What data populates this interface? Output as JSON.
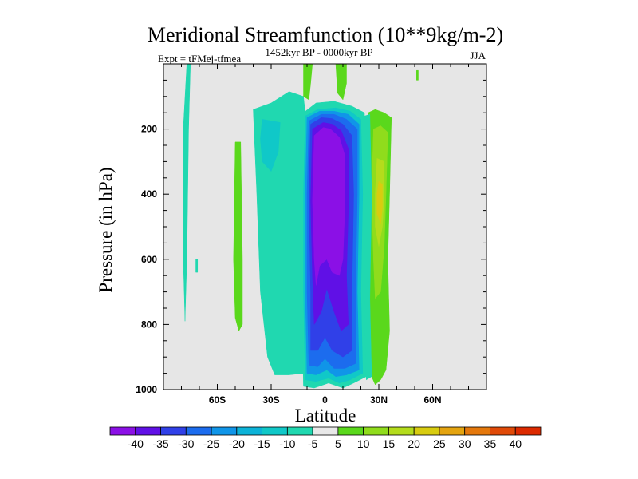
{
  "chart_data": {
    "type": "heatmap",
    "title": "Meridional Streamfunction (10**9kg/m-2)",
    "subtitle_left": "Expt = tFMej-tfmea",
    "subtitle_center": "1452kyr BP - 0000kyr BP",
    "subtitle_right": "JJA",
    "xlabel": "Latitude",
    "ylabel": "Pressure (in hPa)",
    "xlim": [
      -90,
      90
    ],
    "ylim": [
      0,
      1000
    ],
    "y_inverted": true,
    "x_ticks": [
      {
        "value": -60,
        "label": "60S"
      },
      {
        "value": -30,
        "label": "30S"
      },
      {
        "value": 0,
        "label": "0"
      },
      {
        "value": 30,
        "label": "30N"
      },
      {
        "value": 60,
        "label": "60N"
      }
    ],
    "y_ticks": [
      200,
      400,
      600,
      800,
      1000
    ],
    "missing_color": "#e6e6e6",
    "colorbar": {
      "levels": [
        "-40",
        "-35",
        "-30",
        "-25",
        "-20",
        "-15",
        "-10",
        "-5",
        "5",
        "10",
        "15",
        "20",
        "25",
        "30",
        "35",
        "40"
      ],
      "colors": [
        "#8b10e6",
        "#6010e6",
        "#3040e8",
        "#1c6cee",
        "#1095e8",
        "#0cb3d8",
        "#10c8c8",
        "#20d8b0",
        "#e8e8e8",
        "#5ad81c",
        "#90dc1c",
        "#b4dc1c",
        "#d8cc10",
        "#e4a410",
        "#e4780c",
        "#e04a08",
        "#dc2a00"
      ]
    },
    "regions": [
      {
        "name": "polar-south-strip",
        "value": -10,
        "color": "#20d8b0",
        "points": [
          [
            -77,
            0
          ],
          [
            -75,
            0
          ],
          [
            -76,
            200
          ],
          [
            -77,
            600
          ],
          [
            -78,
            790
          ],
          [
            -79,
            600
          ],
          [
            -79,
            200
          ]
        ]
      },
      {
        "name": "south-mid-positive",
        "value": 10,
        "color": "#5ad81c",
        "points": [
          [
            -50,
            240
          ],
          [
            -47,
            240
          ],
          [
            -46,
            600
          ],
          [
            -46,
            800
          ],
          [
            -48,
            820
          ],
          [
            -50,
            780
          ],
          [
            -51,
            600
          ]
        ]
      },
      {
        "name": "south-mid-negative",
        "value": -10,
        "color": "#20d8b0",
        "points": [
          [
            -40,
            140
          ],
          [
            -30,
            120
          ],
          [
            -20,
            85
          ],
          [
            -12,
            100
          ],
          [
            -10,
            200
          ],
          [
            -10,
            500
          ],
          [
            -12,
            950
          ],
          [
            -20,
            955
          ],
          [
            -28,
            955
          ],
          [
            -32,
            900
          ],
          [
            -36,
            700
          ],
          [
            -38,
            400
          ]
        ]
      },
      {
        "name": "south-mid-negative-core",
        "value": -15,
        "color": "#10c8c8",
        "points": [
          [
            -35,
            170
          ],
          [
            -25,
            180
          ],
          [
            -26,
            270
          ],
          [
            -30,
            330
          ],
          [
            -35,
            300
          ],
          [
            -36,
            230
          ]
        ]
      },
      {
        "name": "hadley-outer",
        "value": -10,
        "color": "#20d8b0",
        "points": [
          [
            -12,
            150
          ],
          [
            -5,
            120
          ],
          [
            5,
            115
          ],
          [
            15,
            130
          ],
          [
            22,
            150
          ],
          [
            23,
            400
          ],
          [
            22,
            700
          ],
          [
            23,
            960
          ],
          [
            16,
            980
          ],
          [
            10,
            995
          ],
          [
            2,
            980
          ],
          [
            -6,
            995
          ],
          [
            -12,
            990
          ],
          [
            -13,
            700
          ],
          [
            -13,
            400
          ]
        ]
      },
      {
        "name": "hadley-ring1",
        "value": -15,
        "color": "#10c8c8",
        "points": [
          [
            -11,
            160
          ],
          [
            -4,
            140
          ],
          [
            6,
            135
          ],
          [
            14,
            145
          ],
          [
            20,
            170
          ],
          [
            21,
            400
          ],
          [
            20,
            700
          ],
          [
            21,
            950
          ],
          [
            14,
            970
          ],
          [
            8,
            980
          ],
          [
            2,
            965
          ],
          [
            -5,
            975
          ],
          [
            -11,
            970
          ],
          [
            -12,
            700
          ],
          [
            -12,
            400
          ]
        ]
      },
      {
        "name": "hadley-ring2",
        "value": -20,
        "color": "#1095e8",
        "points": [
          [
            -10,
            165
          ],
          [
            -3,
            145
          ],
          [
            5,
            145
          ],
          [
            13,
            155
          ],
          [
            19,
            185
          ],
          [
            19,
            400
          ],
          [
            18,
            700
          ],
          [
            19,
            940
          ],
          [
            12,
            955
          ],
          [
            6,
            960
          ],
          [
            1,
            940
          ],
          [
            -5,
            955
          ],
          [
            -10,
            950
          ],
          [
            -11,
            700
          ],
          [
            -11,
            400
          ]
        ]
      },
      {
        "name": "hadley-ring3",
        "value": -25,
        "color": "#1c6cee",
        "points": [
          [
            -9,
            175
          ],
          [
            -2,
            155
          ],
          [
            5,
            155
          ],
          [
            12,
            170
          ],
          [
            18,
            200
          ],
          [
            18,
            400
          ],
          [
            17,
            700
          ],
          [
            17,
            920
          ],
          [
            11,
            935
          ],
          [
            5,
            935
          ],
          [
            0,
            905
          ],
          [
            -4,
            930
          ],
          [
            -9,
            925
          ],
          [
            -10,
            700
          ],
          [
            -10,
            400
          ]
        ]
      },
      {
        "name": "hadley-ring4",
        "value": -30,
        "color": "#3040e8",
        "points": [
          [
            -8,
            185
          ],
          [
            -2,
            165
          ],
          [
            4,
            168
          ],
          [
            10,
            185
          ],
          [
            15,
            220
          ],
          [
            16,
            400
          ],
          [
            15,
            700
          ],
          [
            15,
            880
          ],
          [
            10,
            900
          ],
          [
            4,
            880
          ],
          [
            0,
            840
          ],
          [
            -4,
            880
          ],
          [
            -8,
            880
          ],
          [
            -8,
            700
          ],
          [
            -9,
            400
          ]
        ]
      },
      {
        "name": "hadley-ring5",
        "value": -35,
        "color": "#6010e6",
        "points": [
          [
            -7,
            200
          ],
          [
            -1,
            180
          ],
          [
            4,
            185
          ],
          [
            9,
            205
          ],
          [
            13,
            260
          ],
          [
            13,
            450
          ],
          [
            12,
            650
          ],
          [
            13,
            800
          ],
          [
            9,
            820
          ],
          [
            5,
            760
          ],
          [
            1,
            690
          ],
          [
            -2,
            760
          ],
          [
            -6,
            800
          ],
          [
            -7,
            650
          ],
          [
            -8,
            420
          ]
        ]
      },
      {
        "name": "hadley-core",
        "value": -40,
        "color": "#8b10e6",
        "points": [
          [
            -6,
            220
          ],
          [
            -1,
            195
          ],
          [
            3,
            200
          ],
          [
            8,
            225
          ],
          [
            11,
            280
          ],
          [
            11,
            450
          ],
          [
            10,
            600
          ],
          [
            8,
            650
          ],
          [
            4,
            640
          ],
          [
            1,
            600
          ],
          [
            -3,
            620
          ],
          [
            -5,
            680
          ],
          [
            -6,
            600
          ],
          [
            -7,
            420
          ]
        ]
      },
      {
        "name": "north-hadley-positive",
        "value": 10,
        "color": "#5ad81c",
        "points": [
          [
            24,
            150
          ],
          [
            28,
            140
          ],
          [
            33,
            150
          ],
          [
            37,
            165
          ],
          [
            36,
            400
          ],
          [
            35,
            600
          ],
          [
            36,
            820
          ],
          [
            34,
            940
          ],
          [
            31,
            970
          ],
          [
            28,
            985
          ],
          [
            26,
            960
          ],
          [
            24,
            900
          ],
          [
            25,
            700
          ],
          [
            25,
            400
          ]
        ]
      },
      {
        "name": "north-hadley-positive-2",
        "value": 15,
        "color": "#90dc1c",
        "points": [
          [
            27,
            200
          ],
          [
            31,
            190
          ],
          [
            35,
            210
          ],
          [
            34,
            400
          ],
          [
            33,
            560
          ],
          [
            31,
            700
          ],
          [
            28,
            720
          ],
          [
            27,
            600
          ],
          [
            26,
            400
          ]
        ]
      },
      {
        "name": "north-hadley-positive-3",
        "value": 20,
        "color": "#b4dc1c",
        "points": [
          [
            29,
            290
          ],
          [
            33,
            300
          ],
          [
            33,
            400
          ],
          [
            32,
            500
          ],
          [
            30,
            560
          ],
          [
            28,
            500
          ],
          [
            28,
            400
          ]
        ]
      },
      {
        "name": "north-hadley-positive-4",
        "value": 25,
        "color": "#d8cc10",
        "points": [
          [
            30,
            360
          ],
          [
            32,
            370
          ],
          [
            32,
            440
          ],
          [
            31,
            490
          ],
          [
            29,
            460
          ],
          [
            29,
            400
          ]
        ]
      },
      {
        "name": "north-hadley-negative-rim",
        "value": -10,
        "color": "#20d8b0",
        "points": [
          [
            22,
            160
          ],
          [
            25,
            155
          ],
          [
            26,
            400
          ],
          [
            25,
            720
          ],
          [
            26,
            960
          ],
          [
            23,
            970
          ],
          [
            22,
            700
          ]
        ]
      },
      {
        "name": "top-positive-blob-1",
        "value": 10,
        "color": "#5ad81c",
        "points": [
          [
            -12,
            0
          ],
          [
            -7,
            0
          ],
          [
            -8,
            60
          ],
          [
            -9,
            110
          ],
          [
            -12,
            100
          ]
        ]
      },
      {
        "name": "top-positive-blob-2",
        "value": 10,
        "color": "#5ad81c",
        "points": [
          [
            6,
            0
          ],
          [
            12,
            0
          ],
          [
            12,
            60
          ],
          [
            10,
            110
          ],
          [
            7,
            90
          ]
        ]
      },
      {
        "name": "top-positive-blob-3",
        "value": 5,
        "color": "#5ad81c",
        "points": [
          [
            51,
            20
          ],
          [
            52,
            20
          ],
          [
            52,
            50
          ],
          [
            51,
            50
          ]
        ]
      },
      {
        "name": "speck-1",
        "value": -10,
        "color": "#20d8b0",
        "points": [
          [
            -14,
            760
          ],
          [
            -13,
            760
          ],
          [
            -13,
            800
          ],
          [
            -14,
            800
          ]
        ]
      },
      {
        "name": "speck-2",
        "value": -10,
        "color": "#20d8b0",
        "points": [
          [
            -72,
            600
          ],
          [
            -71,
            600
          ],
          [
            -71,
            640
          ],
          [
            -72,
            640
          ]
        ]
      }
    ]
  }
}
